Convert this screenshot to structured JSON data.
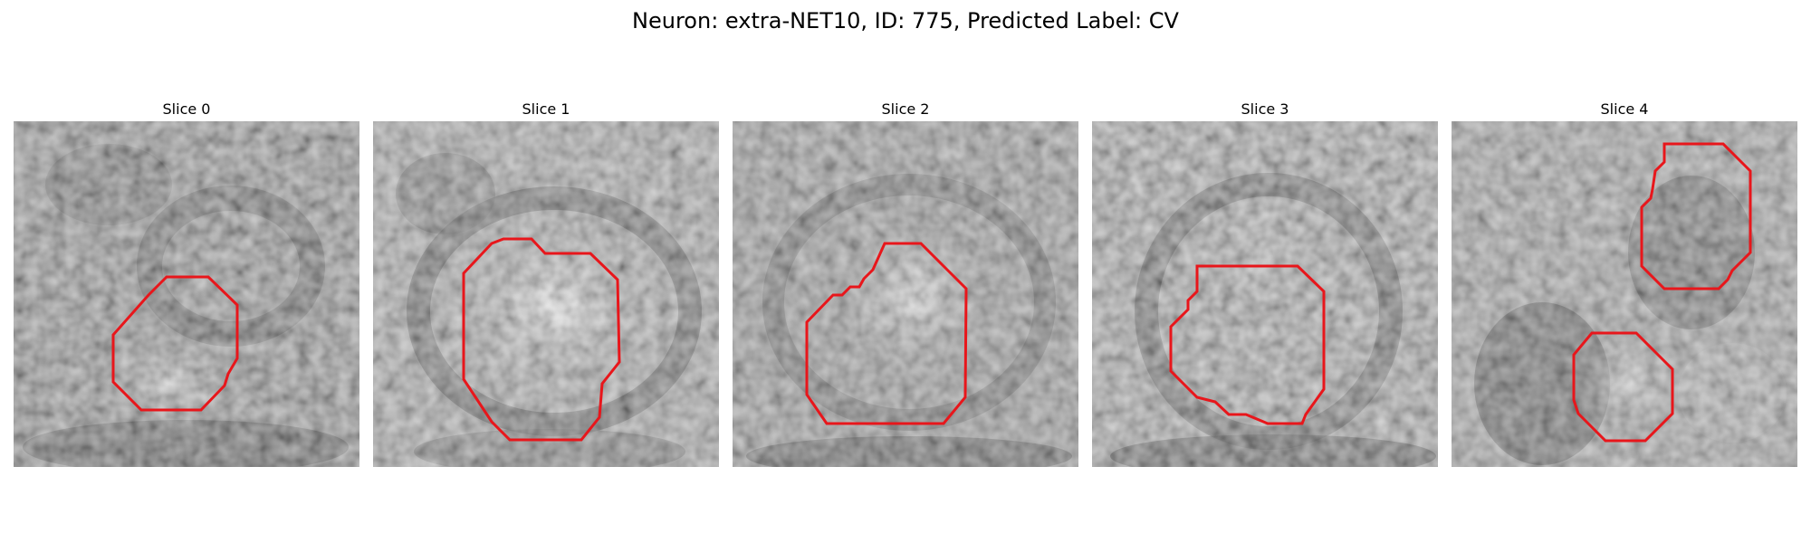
{
  "figure": {
    "title": "Neuron: extra-NET10, ID: 775, Predicted Label: CV"
  },
  "colors": {
    "contour": "#e8161b",
    "background": "#ffffff"
  },
  "panels": [
    {
      "title": "Slice 0"
    },
    {
      "title": "Slice 1"
    },
    {
      "title": "Slice 2"
    },
    {
      "title": "Slice 3"
    },
    {
      "title": "Slice 4"
    }
  ]
}
